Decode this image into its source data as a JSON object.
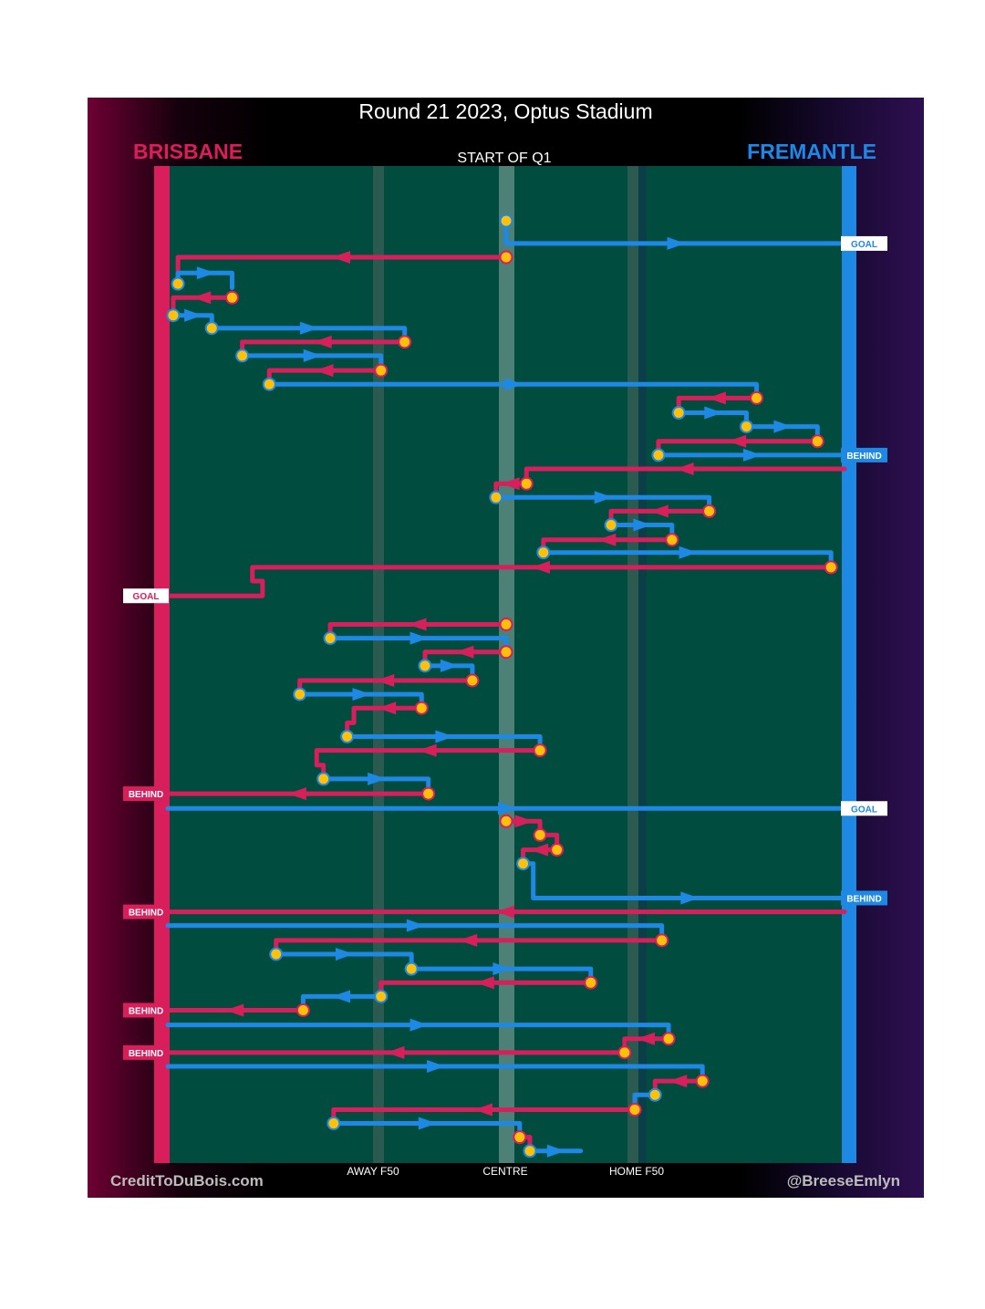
{
  "title": "Round 21 2023, Optus Stadium",
  "period_label": "START OF Q1",
  "brand": {
    "left": "CreditToDuBois.com",
    "right": "@BreeseEmlyn"
  },
  "colors": {
    "brisbane": "#d81e5b",
    "fremantle": "#1e88e5",
    "field": "#004d40",
    "possession_change": "#ffc107"
  },
  "chart_data": {
    "type": "line",
    "title": "Round 21 2023, Optus Stadium",
    "teams": {
      "left": "BRISBANE",
      "right": "FREMANTLE"
    },
    "x_axis": {
      "ticks": [
        "AWAY F50",
        "CENTRE",
        "HOME F50"
      ],
      "range": [
        0,
        100
      ]
    },
    "y_axis": {
      "label": "START OF Q1"
    },
    "outcome_labels": {
      "goal": "GOAL",
      "behind": "BEHIND"
    },
    "chains": [
      {
        "team": "FREMANTLE",
        "points": [
          [
            50,
            5.2
          ],
          [
            50,
            7.5
          ],
          [
            100,
            7.5
          ]
        ],
        "outcome": "GOAL"
      },
      {
        "team": "BRISBANE",
        "points": [
          [
            50,
            8.9
          ],
          [
            1.5,
            8.9
          ],
          [
            1.5,
            11.6
          ]
        ]
      },
      {
        "team": "FREMANTLE",
        "points": [
          [
            1.5,
            11.6
          ],
          [
            1.5,
            10.5
          ],
          [
            9.5,
            10.5
          ],
          [
            9.5,
            12
          ]
        ]
      },
      {
        "team": "BRISBANE",
        "points": [
          [
            9.5,
            13
          ],
          [
            0.8,
            13
          ],
          [
            0.8,
            14.8
          ]
        ]
      },
      {
        "team": "FREMANTLE",
        "points": [
          [
            0.8,
            14.8
          ],
          [
            6.5,
            14.8
          ],
          [
            6.5,
            16.1
          ]
        ]
      },
      {
        "team": "FREMANTLE",
        "points": [
          [
            6.5,
            16.1
          ],
          [
            35,
            16.1
          ],
          [
            35,
            17.5
          ]
        ]
      },
      {
        "team": "BRISBANE",
        "points": [
          [
            35,
            17.5
          ],
          [
            11,
            17.5
          ],
          [
            11,
            18.9
          ]
        ]
      },
      {
        "team": "FREMANTLE",
        "points": [
          [
            11,
            18.9
          ],
          [
            31.5,
            18.9
          ],
          [
            31.5,
            20.4
          ]
        ]
      },
      {
        "team": "BRISBANE",
        "points": [
          [
            31.5,
            20.4
          ],
          [
            15,
            20.4
          ],
          [
            15,
            21.8
          ]
        ]
      },
      {
        "team": "FREMANTLE",
        "points": [
          [
            15,
            21.8
          ],
          [
            87,
            21.8
          ],
          [
            87,
            23.2
          ]
        ]
      },
      {
        "team": "BRISBANE",
        "points": [
          [
            87,
            23.2
          ],
          [
            75.5,
            23.2
          ],
          [
            75.5,
            24.7
          ]
        ]
      },
      {
        "team": "FREMANTLE",
        "points": [
          [
            75.5,
            24.7
          ],
          [
            85.5,
            24.7
          ],
          [
            85.5,
            26.1
          ]
        ]
      },
      {
        "team": "FREMANTLE",
        "points": [
          [
            85.5,
            26.1
          ],
          [
            96,
            26.1
          ],
          [
            96,
            27.6
          ]
        ]
      },
      {
        "team": "BRISBANE",
        "points": [
          [
            96,
            27.6
          ],
          [
            72.5,
            27.6
          ],
          [
            72.5,
            29
          ]
        ]
      },
      {
        "team": "FREMANTLE",
        "points": [
          [
            72.5,
            29
          ],
          [
            100,
            29
          ]
        ],
        "outcome": "BEHIND"
      },
      {
        "team": "BRISBANE",
        "points": [
          [
            100,
            30.4
          ],
          [
            53,
            30.4
          ],
          [
            53,
            31.9
          ]
        ]
      },
      {
        "team": "BRISBANE",
        "points": [
          [
            53,
            31.9
          ],
          [
            48.5,
            31.9
          ],
          [
            48.5,
            33.3
          ]
        ]
      },
      {
        "team": "FREMANTLE",
        "points": [
          [
            48.5,
            33.3
          ],
          [
            80,
            33.3
          ],
          [
            80,
            34.7
          ]
        ]
      },
      {
        "team": "BRISBANE",
        "points": [
          [
            80,
            34.7
          ],
          [
            65.5,
            34.7
          ],
          [
            65.5,
            36.1
          ]
        ]
      },
      {
        "team": "FREMANTLE",
        "points": [
          [
            65.5,
            36.1
          ],
          [
            74.5,
            36.1
          ],
          [
            74.5,
            37.6
          ]
        ]
      },
      {
        "team": "BRISBANE",
        "points": [
          [
            74.5,
            37.6
          ],
          [
            55.5,
            37.6
          ],
          [
            55.5,
            38.9
          ]
        ]
      },
      {
        "team": "FREMANTLE",
        "points": [
          [
            55.5,
            38.9
          ],
          [
            98,
            38.9
          ],
          [
            98,
            40.4
          ]
        ]
      },
      {
        "team": "BRISBANE",
        "points": [
          [
            98,
            40.4
          ],
          [
            12.5,
            40.4
          ],
          [
            12.5,
            41.8
          ],
          [
            14,
            41.8
          ],
          [
            14,
            43.3
          ],
          [
            0,
            43.3
          ]
        ],
        "outcome": "GOAL"
      },
      {
        "team": "BRISBANE",
        "points": [
          [
            50,
            46.2
          ],
          [
            24,
            46.2
          ],
          [
            24,
            47.6
          ]
        ]
      },
      {
        "team": "FREMANTLE",
        "points": [
          [
            24,
            47.6
          ],
          [
            50,
            47.6
          ],
          [
            50,
            49
          ]
        ]
      },
      {
        "team": "BRISBANE",
        "points": [
          [
            50,
            49
          ],
          [
            38,
            49
          ],
          [
            38,
            50.4
          ]
        ]
      },
      {
        "team": "FREMANTLE",
        "points": [
          [
            38,
            50.4
          ],
          [
            45,
            50.4
          ],
          [
            45,
            51.9
          ]
        ]
      },
      {
        "team": "BRISBANE",
        "points": [
          [
            45,
            51.9
          ],
          [
            19.5,
            51.9
          ],
          [
            19.5,
            53.3
          ]
        ]
      },
      {
        "team": "FREMANTLE",
        "points": [
          [
            19.5,
            53.3
          ],
          [
            37.5,
            53.3
          ],
          [
            37.5,
            54.7
          ]
        ]
      },
      {
        "team": "BRISBANE",
        "points": [
          [
            37.5,
            54.7
          ],
          [
            27.5,
            54.7
          ],
          [
            27.5,
            56.2
          ],
          [
            26.5,
            56.2
          ],
          [
            26.5,
            57.6
          ]
        ]
      },
      {
        "team": "FREMANTLE",
        "points": [
          [
            26.5,
            57.6
          ],
          [
            55,
            57.6
          ],
          [
            55,
            59
          ]
        ]
      },
      {
        "team": "BRISBANE",
        "points": [
          [
            55,
            59
          ],
          [
            22,
            59
          ],
          [
            22,
            60.5
          ],
          [
            23,
            60.5
          ],
          [
            23,
            61.9
          ]
        ]
      },
      {
        "team": "FREMANTLE",
        "points": [
          [
            23,
            61.9
          ],
          [
            38.5,
            61.9
          ],
          [
            38.5,
            63.4
          ]
        ]
      },
      {
        "team": "BRISBANE",
        "points": [
          [
            38.5,
            63.4
          ],
          [
            0,
            63.4
          ]
        ],
        "outcome": "BEHIND"
      },
      {
        "team": "FREMANTLE",
        "points": [
          [
            0,
            64.9
          ],
          [
            100,
            64.9
          ]
        ],
        "outcome": "GOAL"
      },
      {
        "team": "BRISBANE",
        "points": [
          [
            50,
            66.2
          ],
          [
            55,
            66.2
          ],
          [
            55,
            67.6
          ]
        ]
      },
      {
        "team": "BRISBANE",
        "points": [
          [
            55,
            67.6
          ],
          [
            57.5,
            67.6
          ],
          [
            57.5,
            69.1
          ]
        ]
      },
      {
        "team": "BRISBANE",
        "points": [
          [
            57.5,
            69.1
          ],
          [
            52.5,
            69.1
          ],
          [
            52.5,
            70.5
          ]
        ]
      },
      {
        "team": "FREMANTLE",
        "points": [
          [
            52.5,
            70.5
          ],
          [
            54,
            70.5
          ],
          [
            54,
            71.9
          ],
          [
            54,
            74
          ],
          [
            100,
            74
          ]
        ],
        "outcome": "BEHIND"
      },
      {
        "team": "BRISBANE",
        "points": [
          [
            100,
            75.4
          ],
          [
            0,
            75.4
          ]
        ],
        "outcome": "BEHIND"
      },
      {
        "team": "FREMANTLE",
        "points": [
          [
            0,
            76.8
          ],
          [
            73,
            76.8
          ],
          [
            73,
            78.3
          ]
        ]
      },
      {
        "team": "BRISBANE",
        "points": [
          [
            73,
            78.3
          ],
          [
            16,
            78.3
          ],
          [
            16,
            79.7
          ]
        ]
      },
      {
        "team": "FREMANTLE",
        "points": [
          [
            16,
            79.7
          ],
          [
            36,
            79.7
          ],
          [
            36,
            81.2
          ]
        ]
      },
      {
        "team": "FREMANTLE",
        "points": [
          [
            36,
            81.2
          ],
          [
            62.5,
            81.2
          ],
          [
            62.5,
            82.6
          ]
        ]
      },
      {
        "team": "BRISBANE",
        "points": [
          [
            62.5,
            82.6
          ],
          [
            31.5,
            82.6
          ],
          [
            31.5,
            84
          ]
        ]
      },
      {
        "team": "FREMANTLE",
        "points": [
          [
            31.5,
            84
          ],
          [
            20,
            84
          ],
          [
            20,
            85.4
          ]
        ]
      },
      {
        "team": "BRISBANE",
        "points": [
          [
            20,
            85.4
          ],
          [
            0,
            85.4
          ]
        ],
        "outcome": "BEHIND"
      },
      {
        "team": "FREMANTLE",
        "points": [
          [
            0,
            86.9
          ],
          [
            74,
            86.9
          ],
          [
            74,
            88.3
          ]
        ]
      },
      {
        "team": "BRISBANE",
        "points": [
          [
            74,
            88.3
          ],
          [
            67.5,
            88.3
          ],
          [
            67.5,
            89.7
          ]
        ]
      },
      {
        "team": "BRISBANE",
        "points": [
          [
            67.5,
            89.7
          ],
          [
            0,
            89.7
          ]
        ],
        "outcome": "BEHIND"
      },
      {
        "team": "FREMANTLE",
        "points": [
          [
            0,
            91.1
          ],
          [
            79,
            91.1
          ],
          [
            79,
            92.6
          ]
        ]
      },
      {
        "team": "BRISBANE",
        "points": [
          [
            79,
            92.6
          ],
          [
            72,
            92.6
          ],
          [
            72,
            94
          ]
        ]
      },
      {
        "team": "FREMANTLE",
        "points": [
          [
            72,
            94
          ],
          [
            69,
            94
          ],
          [
            69,
            95.5
          ]
        ]
      },
      {
        "team": "BRISBANE",
        "points": [
          [
            69,
            95.5
          ],
          [
            24.5,
            95.5
          ],
          [
            24.5,
            96.9
          ]
        ]
      },
      {
        "team": "FREMANTLE",
        "points": [
          [
            24.5,
            96.9
          ],
          [
            52,
            96.9
          ],
          [
            52,
            98.3
          ]
        ]
      },
      {
        "team": "BRISBANE",
        "points": [
          [
            52,
            98.3
          ],
          [
            53.5,
            98.3
          ],
          [
            53.5,
            99.7
          ]
        ]
      },
      {
        "team": "FREMANTLE",
        "points": [
          [
            53.5,
            99.7
          ],
          [
            61,
            99.7
          ]
        ]
      }
    ]
  }
}
